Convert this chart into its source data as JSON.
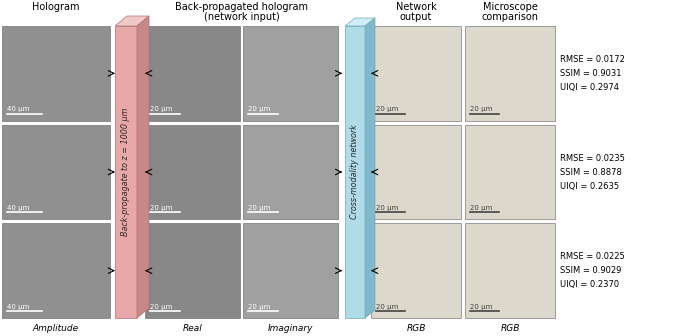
{
  "background_color": "#ffffff",
  "metrics": [
    {
      "rmse": "RMSE = 0.0172",
      "ssim": "SSIM = 0.9031",
      "uiqi": "UIQI = 0.2974"
    },
    {
      "rmse": "RMSE = 0.0235",
      "ssim": "SSIM = 0.8878",
      "uiqi": "UIQI = 0.2635"
    },
    {
      "rmse": "RMSE = 0.0225",
      "ssim": "SSIM = 0.9029",
      "uiqi": "UIQI = 0.2370"
    }
  ],
  "pink_main": "#e8a8a8",
  "pink_top": "#f0c8c8",
  "pink_side": "#c88888",
  "pink_edge": "#b07070",
  "blue_main": "#b0dce8",
  "blue_top": "#d0eef8",
  "blue_side": "#80b8cc",
  "blue_edge": "#70a8bc",
  "holo_color": "#909090",
  "real_color": "#888888",
  "imag_color": "#a0a0a0",
  "net_color": "#ddd8cc",
  "micro_color": "#ddd8cc",
  "header_fontsize": 7,
  "label_fontsize": 6.5,
  "metric_fontsize": 6.0,
  "scalebar_fontsize": 5.0
}
